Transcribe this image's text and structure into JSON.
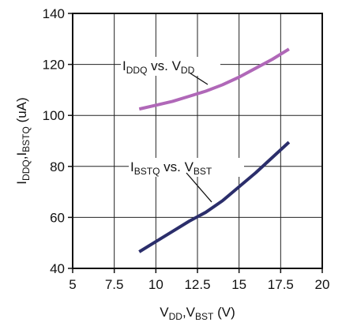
{
  "chart_data": {
    "type": "line",
    "xlim": [
      5,
      20
    ],
    "ylim": [
      40,
      140
    ],
    "x_ticks": [
      "5",
      "7.5",
      "10",
      "12.5",
      "15",
      "17.5",
      "20"
    ],
    "y_ticks": [
      "40",
      "60",
      "80",
      "100",
      "120",
      "140"
    ],
    "grid": true,
    "xlabel": {
      "parts": [
        {
          "t": "V"
        },
        {
          "t": "DD",
          "sub": true
        },
        {
          "t": ",V"
        },
        {
          "t": "BST",
          "sub": true
        },
        {
          "t": " (V)"
        }
      ]
    },
    "ylabel": {
      "parts": [
        {
          "t": "I"
        },
        {
          "t": "DDQ",
          "sub": true
        },
        {
          "t": ",I"
        },
        {
          "t": "BSTQ",
          "sub": true
        },
        {
          "t": " (uA)"
        }
      ]
    },
    "series": [
      {
        "name": "I_DDQ vs. V_DD",
        "label_parts": [
          {
            "t": "I"
          },
          {
            "t": "DDQ",
            "sub": true
          },
          {
            "t": " vs. V"
          },
          {
            "t": "DD",
            "sub": true
          }
        ],
        "color": "#b068b8",
        "x": [
          9,
          10,
          11,
          12,
          13,
          14,
          15,
          16,
          17,
          18
        ],
        "y": [
          102.5,
          104,
          105.5,
          107.5,
          109.5,
          112,
          115,
          118.5,
          122,
          126
        ]
      },
      {
        "name": "I_BSTQ vs. V_BST",
        "label_parts": [
          {
            "t": "I"
          },
          {
            "t": "BSTQ",
            "sub": true
          },
          {
            "t": " vs. V"
          },
          {
            "t": "BST",
            "sub": true
          }
        ],
        "color": "#2b2e6b",
        "x": [
          9,
          10,
          11,
          12,
          13,
          14,
          15,
          16,
          17,
          18
        ],
        "y": [
          46.5,
          50.5,
          54.5,
          58.5,
          62,
          66.5,
          72,
          77.5,
          83.5,
          89.5
        ]
      }
    ]
  }
}
